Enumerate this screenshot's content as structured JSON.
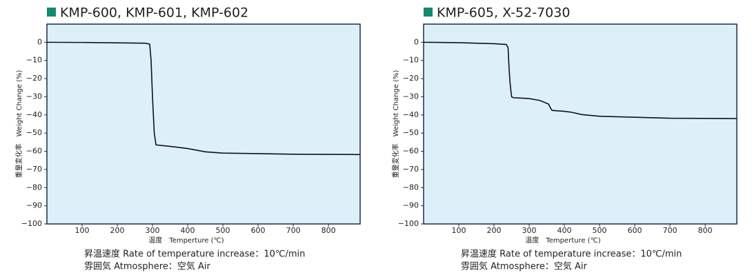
{
  "chart_data": [
    {
      "type": "line",
      "title": "KMP-600, KMP-601, KMP-602",
      "xlabel": "温度　Temperture (℃)",
      "ylabel": "重量変化率　Weight Change (%)",
      "notes": [
        "昇温速度 Rate of temperature increase：10℃/min",
        "雰囲気 Atmosphere：空気 Air"
      ],
      "xlim": [
        0,
        890
      ],
      "ylim": [
        -100,
        10
      ],
      "xticks": [
        100,
        200,
        300,
        400,
        500,
        600,
        700,
        800
      ],
      "yticks": [
        0,
        {
          "value": -10,
          "label": "−10"
        },
        {
          "value": -20,
          "label": "−20"
        },
        {
          "value": -30,
          "label": "−30"
        },
        {
          "value": -40,
          "label": "−40"
        },
        {
          "value": -50,
          "label": "−50"
        },
        {
          "value": -60,
          "label": "−60"
        },
        {
          "value": -70,
          "label": "−70"
        },
        {
          "value": -80,
          "label": "−80"
        },
        {
          "value": -90,
          "label": "−90"
        },
        {
          "value": -100,
          "label": "−100"
        }
      ],
      "series": [
        {
          "color": "#111111",
          "x": [
            0,
            100,
            200,
            280,
            292,
            296,
            300,
            305,
            310,
            350,
            400,
            450,
            500,
            600,
            700,
            890
          ],
          "values": [
            0,
            -0.1,
            -0.3,
            -0.5,
            -1,
            -10,
            -30,
            -50,
            -56.5,
            -57.3,
            -58.5,
            -60.3,
            -61,
            -61.3,
            -61.6,
            -61.8
          ]
        }
      ]
    },
    {
      "type": "line",
      "title": "KMP-605, X-52-7030",
      "xlabel": "温度　Temperture (℃)",
      "ylabel": "重量変化率　Weight Change (%)",
      "notes": [
        "昇温速度 Rate of temperature increase：10℃/min",
        "雰囲気 Atmosphere：空気 Air"
      ],
      "xlim": [
        0,
        890
      ],
      "ylim": [
        -100,
        10
      ],
      "xticks": [
        100,
        200,
        300,
        400,
        500,
        600,
        700,
        800
      ],
      "yticks": [
        0,
        {
          "value": -10,
          "label": "−10"
        },
        {
          "value": -20,
          "label": "−20"
        },
        {
          "value": -30,
          "label": "−30"
        },
        {
          "value": -40,
          "label": "−40"
        },
        {
          "value": -50,
          "label": "−50"
        },
        {
          "value": -60,
          "label": "−60"
        },
        {
          "value": -70,
          "label": "−70"
        },
        {
          "value": -80,
          "label": "−80"
        },
        {
          "value": -90,
          "label": "−90"
        },
        {
          "value": -100,
          "label": "−100"
        }
      ],
      "series": [
        {
          "color": "#111111",
          "x": [
            0,
            100,
            200,
            235,
            240,
            243,
            246,
            250,
            255,
            300,
            330,
            355,
            360,
            365,
            400,
            420,
            450,
            500,
            550,
            700,
            890
          ],
          "values": [
            0,
            -0.2,
            -0.8,
            -1.2,
            -3,
            -15,
            -23,
            -30,
            -30.5,
            -31,
            -32,
            -34,
            -36,
            -37.5,
            -38,
            -38.5,
            -39.8,
            -40.7,
            -41,
            -41.8,
            -42
          ]
        }
      ]
    }
  ]
}
